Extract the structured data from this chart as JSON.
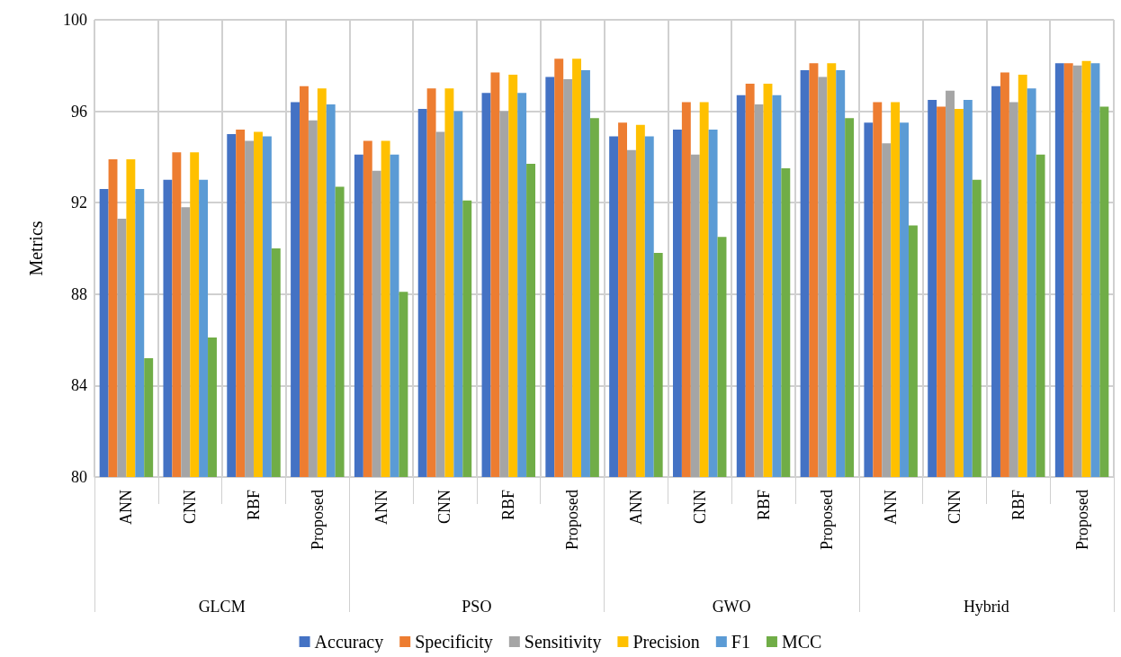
{
  "chart_data": {
    "type": "bar",
    "ylabel": "Metrics",
    "categories": [
      "ANN",
      "CNN",
      "RBF",
      "Proposed",
      "ANN",
      "CNN",
      "RBF",
      "Proposed",
      "ANN",
      "CNN",
      "RBF",
      "Proposed",
      "ANN",
      "CNN",
      "RBF",
      "Proposed"
    ],
    "annotations": [
      "GLCM",
      "PSO",
      "GWO",
      "Hybrid"
    ],
    "series": [
      {
        "name": "Accuracy",
        "color": "#4472c4",
        "values": [
          92.6,
          93.0,
          95.0,
          96.4,
          94.1,
          96.1,
          96.8,
          97.5,
          94.9,
          95.2,
          96.7,
          97.8,
          95.5,
          96.5,
          97.1,
          98.1
        ]
      },
      {
        "name": "Specificity",
        "color": "#ed7d31",
        "values": [
          93.9,
          94.2,
          95.2,
          97.1,
          94.7,
          97.0,
          97.7,
          98.3,
          95.5,
          96.4,
          97.2,
          98.1,
          96.4,
          96.2,
          97.7,
          98.1
        ]
      },
      {
        "name": "Sensitivity",
        "color": "#a5a5a5",
        "values": [
          91.3,
          91.8,
          94.7,
          95.6,
          93.4,
          95.1,
          96.0,
          97.4,
          94.3,
          94.1,
          96.3,
          97.5,
          94.6,
          96.9,
          96.4,
          98.0
        ]
      },
      {
        "name": "Precision",
        "color": "#ffc000",
        "values": [
          93.9,
          94.2,
          95.1,
          97.0,
          94.7,
          97.0,
          97.6,
          98.3,
          95.4,
          96.4,
          97.2,
          98.1,
          96.4,
          96.1,
          97.6,
          98.2
        ]
      },
      {
        "name": "F1",
        "color": "#5b9bd5",
        "values": [
          92.6,
          93.0,
          94.9,
          96.3,
          94.1,
          96.0,
          96.8,
          97.8,
          94.9,
          95.2,
          96.7,
          97.8,
          95.5,
          96.5,
          97.0,
          98.1
        ]
      },
      {
        "name": "MCC",
        "color": "#70ad47",
        "values": [
          85.2,
          86.1,
          90.0,
          92.7,
          88.1,
          92.1,
          93.7,
          95.7,
          89.8,
          90.5,
          93.5,
          95.7,
          91.0,
          93.0,
          94.1,
          96.2
        ]
      }
    ],
    "ylim": [
      80,
      100
    ],
    "yticks": [
      80,
      84,
      88,
      92,
      96,
      100
    ],
    "grid": true,
    "legend": "bottom"
  }
}
